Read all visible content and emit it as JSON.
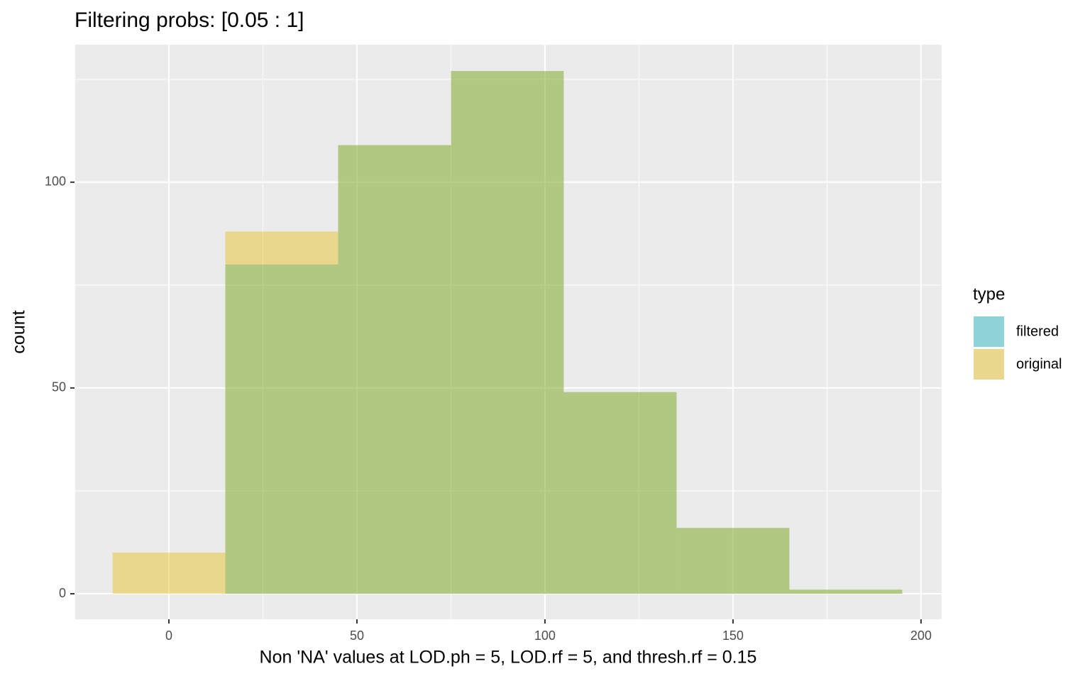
{
  "chart_data": {
    "type": "histogram",
    "title": "Filtering probs: [0.05 : 1]",
    "x_label": "Non 'NA' values at LOD.ph = 5, LOD.rf = 5, and thresh.rf = 0.15",
    "y_label": "count",
    "legend_title": "type",
    "bins": [
      -15,
      15,
      45,
      75,
      105,
      135,
      165,
      195
    ],
    "series": [
      {
        "name": "filtered",
        "color": "#00AFBB",
        "values": [
          0,
          80,
          109,
          127,
          49,
          16,
          1
        ]
      },
      {
        "name": "original",
        "color": "#E7B800",
        "values": [
          10,
          88,
          109,
          127,
          49,
          16,
          1
        ]
      }
    ],
    "opacity": 0.4,
    "xlim": [
      -25.1,
      205.5
    ],
    "xticks": [
      0,
      50,
      100,
      150,
      200
    ],
    "ylim": [
      -6.2,
      133.4
    ],
    "yticks": [
      0,
      50,
      100
    ],
    "grid": true,
    "legend_position": "right"
  }
}
